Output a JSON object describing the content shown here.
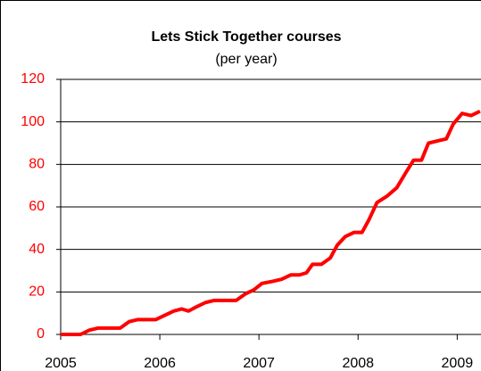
{
  "chart_data": {
    "type": "line",
    "title": "Lets Stick Together courses",
    "subtitle": "(per year)",
    "x": [
      2005,
      2005.2,
      2005.29,
      2005.38,
      2005.6,
      2005.69,
      2005.78,
      2005.96,
      2006.05,
      2006.14,
      2006.22,
      2006.29,
      2006.37,
      2006.46,
      2006.55,
      2006.77,
      2006.86,
      2006.95,
      2007.03,
      2007.14,
      2007.23,
      2007.32,
      2007.41,
      2007.48,
      2007.54,
      2007.63,
      2007.72,
      2007.79,
      2007.87,
      2007.96,
      2008.04,
      2008.11,
      2008.19,
      2008.29,
      2008.39,
      2008.48,
      2008.56,
      2008.64,
      2008.71,
      2008.8,
      2008.89,
      2008.96,
      2009.05,
      2009.14,
      2009.23
    ],
    "series": [
      {
        "color": "#ff0000",
        "values": [
          0,
          0,
          2,
          3,
          3,
          6,
          7,
          7,
          9,
          11,
          12,
          11,
          13,
          15,
          16,
          16,
          19,
          21,
          24,
          25,
          26,
          28,
          28,
          29,
          33,
          33,
          36,
          42,
          46,
          48,
          48,
          54,
          62,
          65,
          69,
          76,
          82,
          82,
          90,
          91,
          92,
          99,
          104,
          103,
          105
        ]
      }
    ],
    "xlim": [
      2005,
      2009.24
    ],
    "xticks": [
      2005,
      2006,
      2007,
      2008,
      2009
    ],
    "ylim": [
      0,
      120
    ],
    "yticks": [
      0,
      20,
      40,
      60,
      80,
      100,
      120
    ],
    "grid": true,
    "ytick_color": "#ff0000"
  }
}
